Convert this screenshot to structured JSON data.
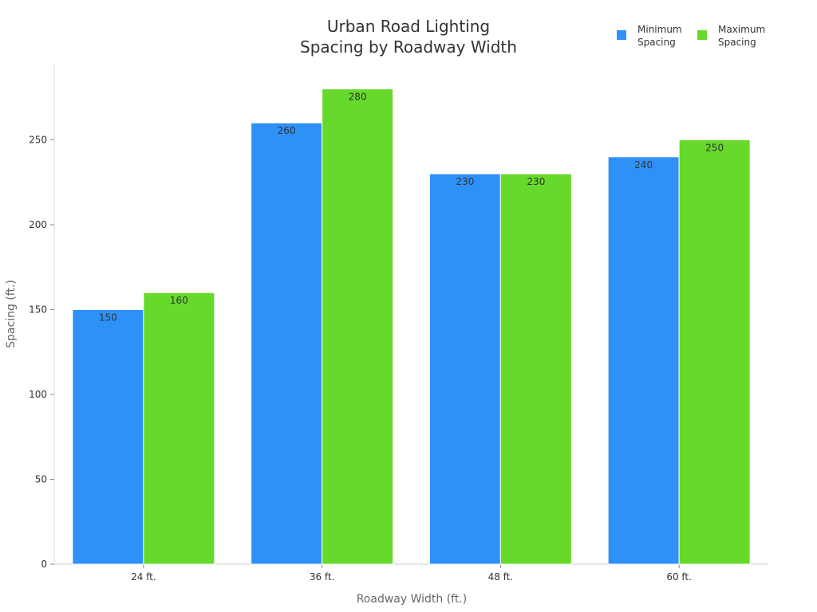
{
  "chart_data": {
    "type": "bar",
    "title_lines": [
      "Urban Road Lighting",
      "Spacing by Roadway Width"
    ],
    "xlabel": "Roadway Width (ft.)",
    "ylabel": "Spacing (ft.)",
    "categories": [
      "24 ft.",
      "36 ft.",
      "48 ft.",
      "60 ft."
    ],
    "series": [
      {
        "name_lines": [
          "Minimum",
          "Spacing"
        ],
        "color": "#2E91F7",
        "values": [
          150,
          260,
          230,
          240
        ]
      },
      {
        "name_lines": [
          "Maximum",
          "Spacing"
        ],
        "color": "#66D92A",
        "values": [
          160,
          280,
          230,
          250
        ]
      }
    ],
    "ylim": [
      0,
      280
    ],
    "yticks": [
      0,
      50,
      100,
      150,
      200,
      250
    ],
    "grid": false,
    "legend_position": "top-right",
    "data_labels": true
  }
}
